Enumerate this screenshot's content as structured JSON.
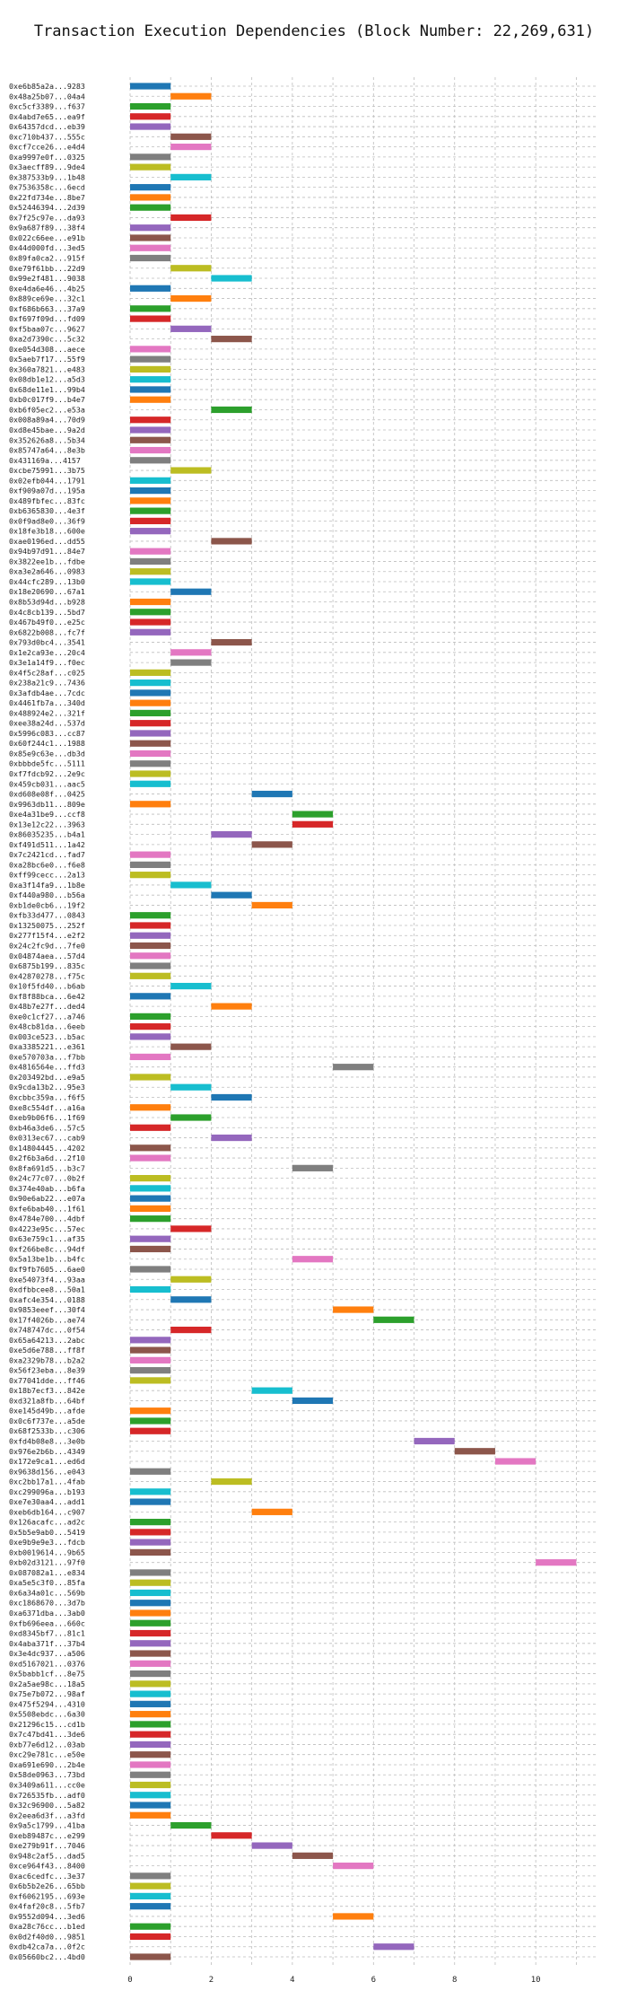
{
  "chart_data": {
    "type": "bar",
    "orientation": "horizontal",
    "title": "Transaction Execution Dependencies (Block Number: 22,269,631)",
    "xlabel": "",
    "ylabel": "",
    "xlim": [
      0,
      11.5
    ],
    "xticks": [
      0,
      2,
      4,
      6,
      8,
      10
    ],
    "grid": true,
    "palette": [
      "#1f77b4",
      "#ff7f0e",
      "#2ca02c",
      "#d62728",
      "#9467bd",
      "#8c564b",
      "#e377c2",
      "#7f7f7f",
      "#bcbd22",
      "#17becf"
    ],
    "transactions": [
      {
        "label": "0xe6b85a2a...9283",
        "start": 0,
        "end": 1
      },
      {
        "label": "0x48a25b07...04a4",
        "start": 1,
        "end": 2
      },
      {
        "label": "0xc5cf3389...f637",
        "start": 0,
        "end": 1
      },
      {
        "label": "0x4abd7e65...ea9f",
        "start": 0,
        "end": 1
      },
      {
        "label": "0x64357dcd...eb39",
        "start": 0,
        "end": 1
      },
      {
        "label": "0xc710b437...555c",
        "start": 1,
        "end": 2
      },
      {
        "label": "0xcf7cce26...e4d4",
        "start": 1,
        "end": 2
      },
      {
        "label": "0xa9997e0f...0325",
        "start": 0,
        "end": 1
      },
      {
        "label": "0x3aecff89...9de4",
        "start": 0,
        "end": 1
      },
      {
        "label": "0x387533b9...1b48",
        "start": 1,
        "end": 2
      },
      {
        "label": "0x7536358c...6ecd",
        "start": 0,
        "end": 1
      },
      {
        "label": "0x22fd734e...8be7",
        "start": 0,
        "end": 1
      },
      {
        "label": "0x52446394...2d39",
        "start": 0,
        "end": 1
      },
      {
        "label": "0x7f25c97e...da93",
        "start": 1,
        "end": 2
      },
      {
        "label": "0x9a687f89...38f4",
        "start": 0,
        "end": 1
      },
      {
        "label": "0x022c66ee...e91b",
        "start": 0,
        "end": 1
      },
      {
        "label": "0x44d000fd...3ed5",
        "start": 0,
        "end": 1
      },
      {
        "label": "0x89fa0ca2...915f",
        "start": 0,
        "end": 1
      },
      {
        "label": "0xe79f61bb...22d9",
        "start": 1,
        "end": 2
      },
      {
        "label": "0x99e2f481...9038",
        "start": 2,
        "end": 3
      },
      {
        "label": "0xe4da6e46...4b25",
        "start": 0,
        "end": 1
      },
      {
        "label": "0x889ce69e...32c1",
        "start": 1,
        "end": 2
      },
      {
        "label": "0xf686b663...37a9",
        "start": 0,
        "end": 1
      },
      {
        "label": "0xf697f09d...fd09",
        "start": 0,
        "end": 1
      },
      {
        "label": "0xf5baa07c...9627",
        "start": 1,
        "end": 2
      },
      {
        "label": "0xa2d7390c...5c32",
        "start": 2,
        "end": 3
      },
      {
        "label": "0xe054d308...aece",
        "start": 0,
        "end": 1
      },
      {
        "label": "0x5aeb7f17...55f9",
        "start": 0,
        "end": 1
      },
      {
        "label": "0x360a7821...e483",
        "start": 0,
        "end": 1
      },
      {
        "label": "0x08db1e12...a5d3",
        "start": 0,
        "end": 1
      },
      {
        "label": "0x68de11e1...99b4",
        "start": 0,
        "end": 1
      },
      {
        "label": "0xb0c017f9...b4e7",
        "start": 0,
        "end": 1
      },
      {
        "label": "0xb6f05ec2...e53a",
        "start": 2,
        "end": 3
      },
      {
        "label": "0x008a89a4...70d9",
        "start": 0,
        "end": 1
      },
      {
        "label": "0xd8e45bae...9a2d",
        "start": 0,
        "end": 1
      },
      {
        "label": "0x352626a8...5b34",
        "start": 0,
        "end": 1
      },
      {
        "label": "0x85747a64...8e3b",
        "start": 0,
        "end": 1
      },
      {
        "label": "0x431169a...4157",
        "start": 0,
        "end": 1
      },
      {
        "label": "0xcbe75991...3b75",
        "start": 1,
        "end": 2
      },
      {
        "label": "0x02efb044...1791",
        "start": 0,
        "end": 1
      },
      {
        "label": "0xf909a07d...195a",
        "start": 0,
        "end": 1
      },
      {
        "label": "0x489fbfec...83fc",
        "start": 0,
        "end": 1
      },
      {
        "label": "0xb6365830...4e3f",
        "start": 0,
        "end": 1
      },
      {
        "label": "0x0f9ad8e0...36f9",
        "start": 0,
        "end": 1
      },
      {
        "label": "0x18fe3b18...600e",
        "start": 0,
        "end": 1
      },
      {
        "label": "0xae0196ed...dd55",
        "start": 2,
        "end": 3
      },
      {
        "label": "0x94b97d91...84e7",
        "start": 0,
        "end": 1
      },
      {
        "label": "0x3822ee1b...fdbe",
        "start": 0,
        "end": 1
      },
      {
        "label": "0xa3e2a646...0983",
        "start": 0,
        "end": 1
      },
      {
        "label": "0x44cfc289...13b0",
        "start": 0,
        "end": 1
      },
      {
        "label": "0x18e20690...67a1",
        "start": 1,
        "end": 2
      },
      {
        "label": "0x8b53d94d...b928",
        "start": 0,
        "end": 1
      },
      {
        "label": "0x4c8cb139...5bd7",
        "start": 0,
        "end": 1
      },
      {
        "label": "0x467b49f0...e25c",
        "start": 0,
        "end": 1
      },
      {
        "label": "0x6822b008...fc7f",
        "start": 0,
        "end": 1
      },
      {
        "label": "0x793d0bc4...3541",
        "start": 2,
        "end": 3
      },
      {
        "label": "0x1e2ca93e...20c4",
        "start": 1,
        "end": 2
      },
      {
        "label": "0x3e1a14f9...f0ec",
        "start": 1,
        "end": 2
      },
      {
        "label": "0x4f5c28af...c025",
        "start": 0,
        "end": 1
      },
      {
        "label": "0x238a21c9...7436",
        "start": 0,
        "end": 1
      },
      {
        "label": "0x3afdb4ae...7cdc",
        "start": 0,
        "end": 1
      },
      {
        "label": "0x4461fb7a...340d",
        "start": 0,
        "end": 1
      },
      {
        "label": "0x488924e2...321f",
        "start": 0,
        "end": 1
      },
      {
        "label": "0xee38a24d...537d",
        "start": 0,
        "end": 1
      },
      {
        "label": "0x5996c083...cc87",
        "start": 0,
        "end": 1
      },
      {
        "label": "0x60f244c1...1988",
        "start": 0,
        "end": 1
      },
      {
        "label": "0x85e9c63e...db3d",
        "start": 0,
        "end": 1
      },
      {
        "label": "0xbbbde5fc...5111",
        "start": 0,
        "end": 1
      },
      {
        "label": "0xf7fdcb92...2e9c",
        "start": 0,
        "end": 1
      },
      {
        "label": "0x459cb031...aac5",
        "start": 0,
        "end": 1
      },
      {
        "label": "0xd608e08f...0425",
        "start": 3,
        "end": 4
      },
      {
        "label": "0x9963db11...809e",
        "start": 0,
        "end": 1
      },
      {
        "label": "0xe4a31be9...ccf8",
        "start": 4,
        "end": 5
      },
      {
        "label": "0x13e12c22...3963",
        "start": 4,
        "end": 5
      },
      {
        "label": "0x86035235...b4a1",
        "start": 2,
        "end": 3
      },
      {
        "label": "0xf491d511...1a42",
        "start": 3,
        "end": 4
      },
      {
        "label": "0x7c2421cd...fad7",
        "start": 0,
        "end": 1
      },
      {
        "label": "0xa28bc6e0...f6e8",
        "start": 0,
        "end": 1
      },
      {
        "label": "0xff99cecc...2a13",
        "start": 0,
        "end": 1
      },
      {
        "label": "0xa3f14fa9...1b8e",
        "start": 1,
        "end": 2
      },
      {
        "label": "0xf440a980...b56a",
        "start": 2,
        "end": 3
      },
      {
        "label": "0xb1de0cb6...19f2",
        "start": 3,
        "end": 4
      },
      {
        "label": "0xfb33d477...0843",
        "start": 0,
        "end": 1
      },
      {
        "label": "0x13250075...252f",
        "start": 0,
        "end": 1
      },
      {
        "label": "0x277f15f4...e2f2",
        "start": 0,
        "end": 1
      },
      {
        "label": "0x24c2fc9d...7fe0",
        "start": 0,
        "end": 1
      },
      {
        "label": "0x04874aea...57d4",
        "start": 0,
        "end": 1
      },
      {
        "label": "0x6875b199...835c",
        "start": 0,
        "end": 1
      },
      {
        "label": "0x42870278...f75c",
        "start": 0,
        "end": 1
      },
      {
        "label": "0x10f5fd40...b6ab",
        "start": 1,
        "end": 2
      },
      {
        "label": "0xf8f88bca...6e42",
        "start": 0,
        "end": 1
      },
      {
        "label": "0x48b7e27f...ded4",
        "start": 2,
        "end": 3
      },
      {
        "label": "0xe0c1cf27...a746",
        "start": 0,
        "end": 1
      },
      {
        "label": "0x48cb81da...6eeb",
        "start": 0,
        "end": 1
      },
      {
        "label": "0x003ce523...b5ac",
        "start": 0,
        "end": 1
      },
      {
        "label": "0xa3385221...e361",
        "start": 1,
        "end": 2
      },
      {
        "label": "0xe570703a...f7bb",
        "start": 0,
        "end": 1
      },
      {
        "label": "0x4816564e...ffd3",
        "start": 5,
        "end": 6
      },
      {
        "label": "0x203492bd...e9a5",
        "start": 0,
        "end": 1
      },
      {
        "label": "0x9cda13b2...95e3",
        "start": 1,
        "end": 2
      },
      {
        "label": "0xcbbc359a...f6f5",
        "start": 2,
        "end": 3
      },
      {
        "label": "0xe8c554df...a16a",
        "start": 0,
        "end": 1
      },
      {
        "label": "0xeb9b06f6...1f69",
        "start": 1,
        "end": 2
      },
      {
        "label": "0xb46a3de6...57c5",
        "start": 0,
        "end": 1
      },
      {
        "label": "0x0313ec67...cab9",
        "start": 2,
        "end": 3
      },
      {
        "label": "0x14804445...4202",
        "start": 0,
        "end": 1
      },
      {
        "label": "0x2f6b3a6d...2f10",
        "start": 0,
        "end": 1
      },
      {
        "label": "0x8fa691d5...b3c7",
        "start": 4,
        "end": 5
      },
      {
        "label": "0x24c77c07...0b2f",
        "start": 0,
        "end": 1
      },
      {
        "label": "0x374e40ab...b6fa",
        "start": 0,
        "end": 1
      },
      {
        "label": "0x90e6ab22...e07a",
        "start": 0,
        "end": 1
      },
      {
        "label": "0xfe6bab40...1f61",
        "start": 0,
        "end": 1
      },
      {
        "label": "0x4784e700...4dbf",
        "start": 0,
        "end": 1
      },
      {
        "label": "0x4223e95c...57ec",
        "start": 1,
        "end": 2
      },
      {
        "label": "0x63e759c1...af35",
        "start": 0,
        "end": 1
      },
      {
        "label": "0xf266be8c...94df",
        "start": 0,
        "end": 1
      },
      {
        "label": "0x5a13be1b...b4fc",
        "start": 4,
        "end": 5
      },
      {
        "label": "0xf9fb7605...6ae0",
        "start": 0,
        "end": 1
      },
      {
        "label": "0xe54073f4...93aa",
        "start": 1,
        "end": 2
      },
      {
        "label": "0xdfbbcee8...50a1",
        "start": 0,
        "end": 1
      },
      {
        "label": "0xafc4e354...0188",
        "start": 1,
        "end": 2
      },
      {
        "label": "0x9853eeef...30f4",
        "start": 5,
        "end": 6
      },
      {
        "label": "0x17f4026b...ae74",
        "start": 6,
        "end": 7
      },
      {
        "label": "0x748747dc...0f54",
        "start": 1,
        "end": 2
      },
      {
        "label": "0x65a64213...2abc",
        "start": 0,
        "end": 1
      },
      {
        "label": "0xe5d6e788...ff8f",
        "start": 0,
        "end": 1
      },
      {
        "label": "0xa2329b78...b2a2",
        "start": 0,
        "end": 1
      },
      {
        "label": "0x56f23eba...8e39",
        "start": 0,
        "end": 1
      },
      {
        "label": "0x77041dde...ff46",
        "start": 0,
        "end": 1
      },
      {
        "label": "0x18b7ecf3...842e",
        "start": 3,
        "end": 4
      },
      {
        "label": "0xd321a8fb...64bf",
        "start": 4,
        "end": 5
      },
      {
        "label": "0xe145d49b...afde",
        "start": 0,
        "end": 1
      },
      {
        "label": "0x0c6f737e...a5de",
        "start": 0,
        "end": 1
      },
      {
        "label": "0x68f2533b...c306",
        "start": 0,
        "end": 1
      },
      {
        "label": "0xfd4b08e8...3e0b",
        "start": 7,
        "end": 8
      },
      {
        "label": "0x976e2b6b...4349",
        "start": 8,
        "end": 9
      },
      {
        "label": "0x172e9ca1...ed6d",
        "start": 9,
        "end": 10
      },
      {
        "label": "0x9638d156...e043",
        "start": 0,
        "end": 1
      },
      {
        "label": "0xc2bb17a1...4fab",
        "start": 2,
        "end": 3
      },
      {
        "label": "0xc299096a...b193",
        "start": 0,
        "end": 1
      },
      {
        "label": "0xe7e30aa4...add1",
        "start": 0,
        "end": 1
      },
      {
        "label": "0xeb6db164...c907",
        "start": 3,
        "end": 4
      },
      {
        "label": "0x126acafc...ad2c",
        "start": 0,
        "end": 1
      },
      {
        "label": "0x5b5e9ab0...5419",
        "start": 0,
        "end": 1
      },
      {
        "label": "0xe9b9e9e3...fdcb",
        "start": 0,
        "end": 1
      },
      {
        "label": "0xb0019614...9b65",
        "start": 0,
        "end": 1
      },
      {
        "label": "0xb02d3121...97f0",
        "start": 10,
        "end": 11
      },
      {
        "label": "0x087082a1...e834",
        "start": 0,
        "end": 1
      },
      {
        "label": "0xa5e5c3f0...85fa",
        "start": 0,
        "end": 1
      },
      {
        "label": "0x6a34a01c...569b",
        "start": 0,
        "end": 1
      },
      {
        "label": "0xc1868670...3d7b",
        "start": 0,
        "end": 1
      },
      {
        "label": "0xa6371dba...3ab0",
        "start": 0,
        "end": 1
      },
      {
        "label": "0xfb696eea...660c",
        "start": 0,
        "end": 1
      },
      {
        "label": "0xd8345bf7...81c1",
        "start": 0,
        "end": 1
      },
      {
        "label": "0x4aba371f...37b4",
        "start": 0,
        "end": 1
      },
      {
        "label": "0x3e4dc937...a506",
        "start": 0,
        "end": 1
      },
      {
        "label": "0xd5167021...0376",
        "start": 0,
        "end": 1
      },
      {
        "label": "0x5babb1cf...8e75",
        "start": 0,
        "end": 1
      },
      {
        "label": "0x2a5ae98c...18a5",
        "start": 0,
        "end": 1
      },
      {
        "label": "0x75e7b072...98af",
        "start": 0,
        "end": 1
      },
      {
        "label": "0x475f5294...4310",
        "start": 0,
        "end": 1
      },
      {
        "label": "0x5508ebdc...6a30",
        "start": 0,
        "end": 1
      },
      {
        "label": "0x21296c15...cd1b",
        "start": 0,
        "end": 1
      },
      {
        "label": "0x7c47bd41...3de6",
        "start": 0,
        "end": 1
      },
      {
        "label": "0xb77e6d12...03ab",
        "start": 0,
        "end": 1
      },
      {
        "label": "0xc29e781c...e50e",
        "start": 0,
        "end": 1
      },
      {
        "label": "0xa691e690...2b4e",
        "start": 0,
        "end": 1
      },
      {
        "label": "0x58de0963...73bd",
        "start": 0,
        "end": 1
      },
      {
        "label": "0x3409a611...cc0e",
        "start": 0,
        "end": 1
      },
      {
        "label": "0x726535fb...adf0",
        "start": 0,
        "end": 1
      },
      {
        "label": "0x32c96900...5a82",
        "start": 0,
        "end": 1
      },
      {
        "label": "0x2eea6d3f...a3fd",
        "start": 0,
        "end": 1
      },
      {
        "label": "0x9a5c1799...41ba",
        "start": 1,
        "end": 2
      },
      {
        "label": "0xeb89487c...e299",
        "start": 2,
        "end": 3
      },
      {
        "label": "0xe279b91f...7046",
        "start": 3,
        "end": 4
      },
      {
        "label": "0x948c2af5...dad5",
        "start": 4,
        "end": 5
      },
      {
        "label": "0xce964f43...8400",
        "start": 5,
        "end": 6
      },
      {
        "label": "0xac6cedfc...3e37",
        "start": 0,
        "end": 1
      },
      {
        "label": "0x6b5b2e26...65bb",
        "start": 0,
        "end": 1
      },
      {
        "label": "0xf6062195...693e",
        "start": 0,
        "end": 1
      },
      {
        "label": "0x4faf20c8...5fb7",
        "start": 0,
        "end": 1
      },
      {
        "label": "0x9552d094...3ed6",
        "start": 5,
        "end": 6
      },
      {
        "label": "0xa28c76cc...b1ed",
        "start": 0,
        "end": 1
      },
      {
        "label": "0x0d2f40d0...9851",
        "start": 0,
        "end": 1
      },
      {
        "label": "0xdb42ca7a...0f2c",
        "start": 6,
        "end": 7
      },
      {
        "label": "0x05660bc2...4bd0",
        "start": 0,
        "end": 1
      }
    ]
  }
}
